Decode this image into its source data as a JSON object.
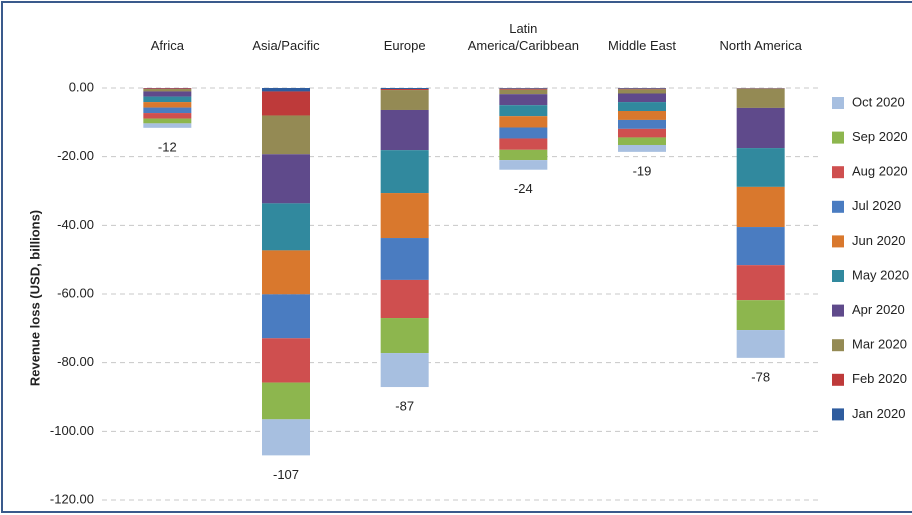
{
  "chart_data": {
    "type": "bar",
    "stacked": true,
    "y_label": "Revenue loss (USD, billions)",
    "categories": [
      "Africa",
      "Asia/Pacific",
      "Europe",
      "Latin America/Caribbean",
      "Middle East",
      "North America"
    ],
    "series": [
      {
        "name": "Jan 2020",
        "color": "#2e5c9e",
        "values": [
          -0.1,
          -1.0,
          -0.3,
          -0.2,
          -0.2,
          -0.1
        ]
      },
      {
        "name": "Feb 2020",
        "color": "#be3a3a",
        "values": [
          -0.2,
          -7.0,
          -0.3,
          -0.3,
          -0.2,
          -0.1
        ]
      },
      {
        "name": "Mar 2020",
        "color": "#948a54",
        "values": [
          -0.7,
          -11.3,
          -5.8,
          -1.3,
          -1.2,
          -5.6
        ]
      },
      {
        "name": "Apr 2020",
        "color": "#5f4a8b",
        "values": [
          -1.5,
          -14.3,
          -11.7,
          -3.2,
          -2.5,
          -11.7
        ]
      },
      {
        "name": "May 2020",
        "color": "#31899e",
        "values": [
          -1.6,
          -13.7,
          -12.5,
          -3.2,
          -2.6,
          -11.3
        ]
      },
      {
        "name": "Jun 2020",
        "color": "#d9782d",
        "values": [
          -1.6,
          -12.8,
          -13.1,
          -3.3,
          -2.6,
          -11.7
        ]
      },
      {
        "name": "Jul 2020",
        "color": "#4a7cc1",
        "values": [
          -1.6,
          -12.8,
          -12.2,
          -3.2,
          -2.6,
          -11.1
        ]
      },
      {
        "name": "Aug 2020",
        "color": "#cf4f4f",
        "values": [
          -1.6,
          -12.9,
          -11.1,
          -3.3,
          -2.5,
          -10.2
        ]
      },
      {
        "name": "Sep 2020",
        "color": "#8db64e",
        "values": [
          -1.4,
          -10.7,
          -10.2,
          -3.0,
          -2.2,
          -8.7
        ]
      },
      {
        "name": "Oct 2020",
        "color": "#a7bfe0",
        "values": [
          -1.3,
          -10.5,
          -9.9,
          -2.8,
          -2.0,
          -8.1
        ]
      }
    ],
    "totals": [
      -12,
      -107,
      -87,
      -24,
      -19,
      -78
    ],
    "ylim": [
      -120,
      0
    ],
    "yticks": [
      {
        "value": 0,
        "label": "0.00"
      },
      {
        "value": -20,
        "label": "-20.00"
      },
      {
        "value": -40,
        "label": "-40.00"
      },
      {
        "value": -60,
        "label": "-60.00"
      },
      {
        "value": -80,
        "label": "-80.00"
      },
      {
        "value": -100,
        "label": "-100.00"
      },
      {
        "value": -120,
        "label": "-120.00"
      }
    ],
    "grid": true,
    "legend": "right",
    "legend_order": "reversed"
  }
}
